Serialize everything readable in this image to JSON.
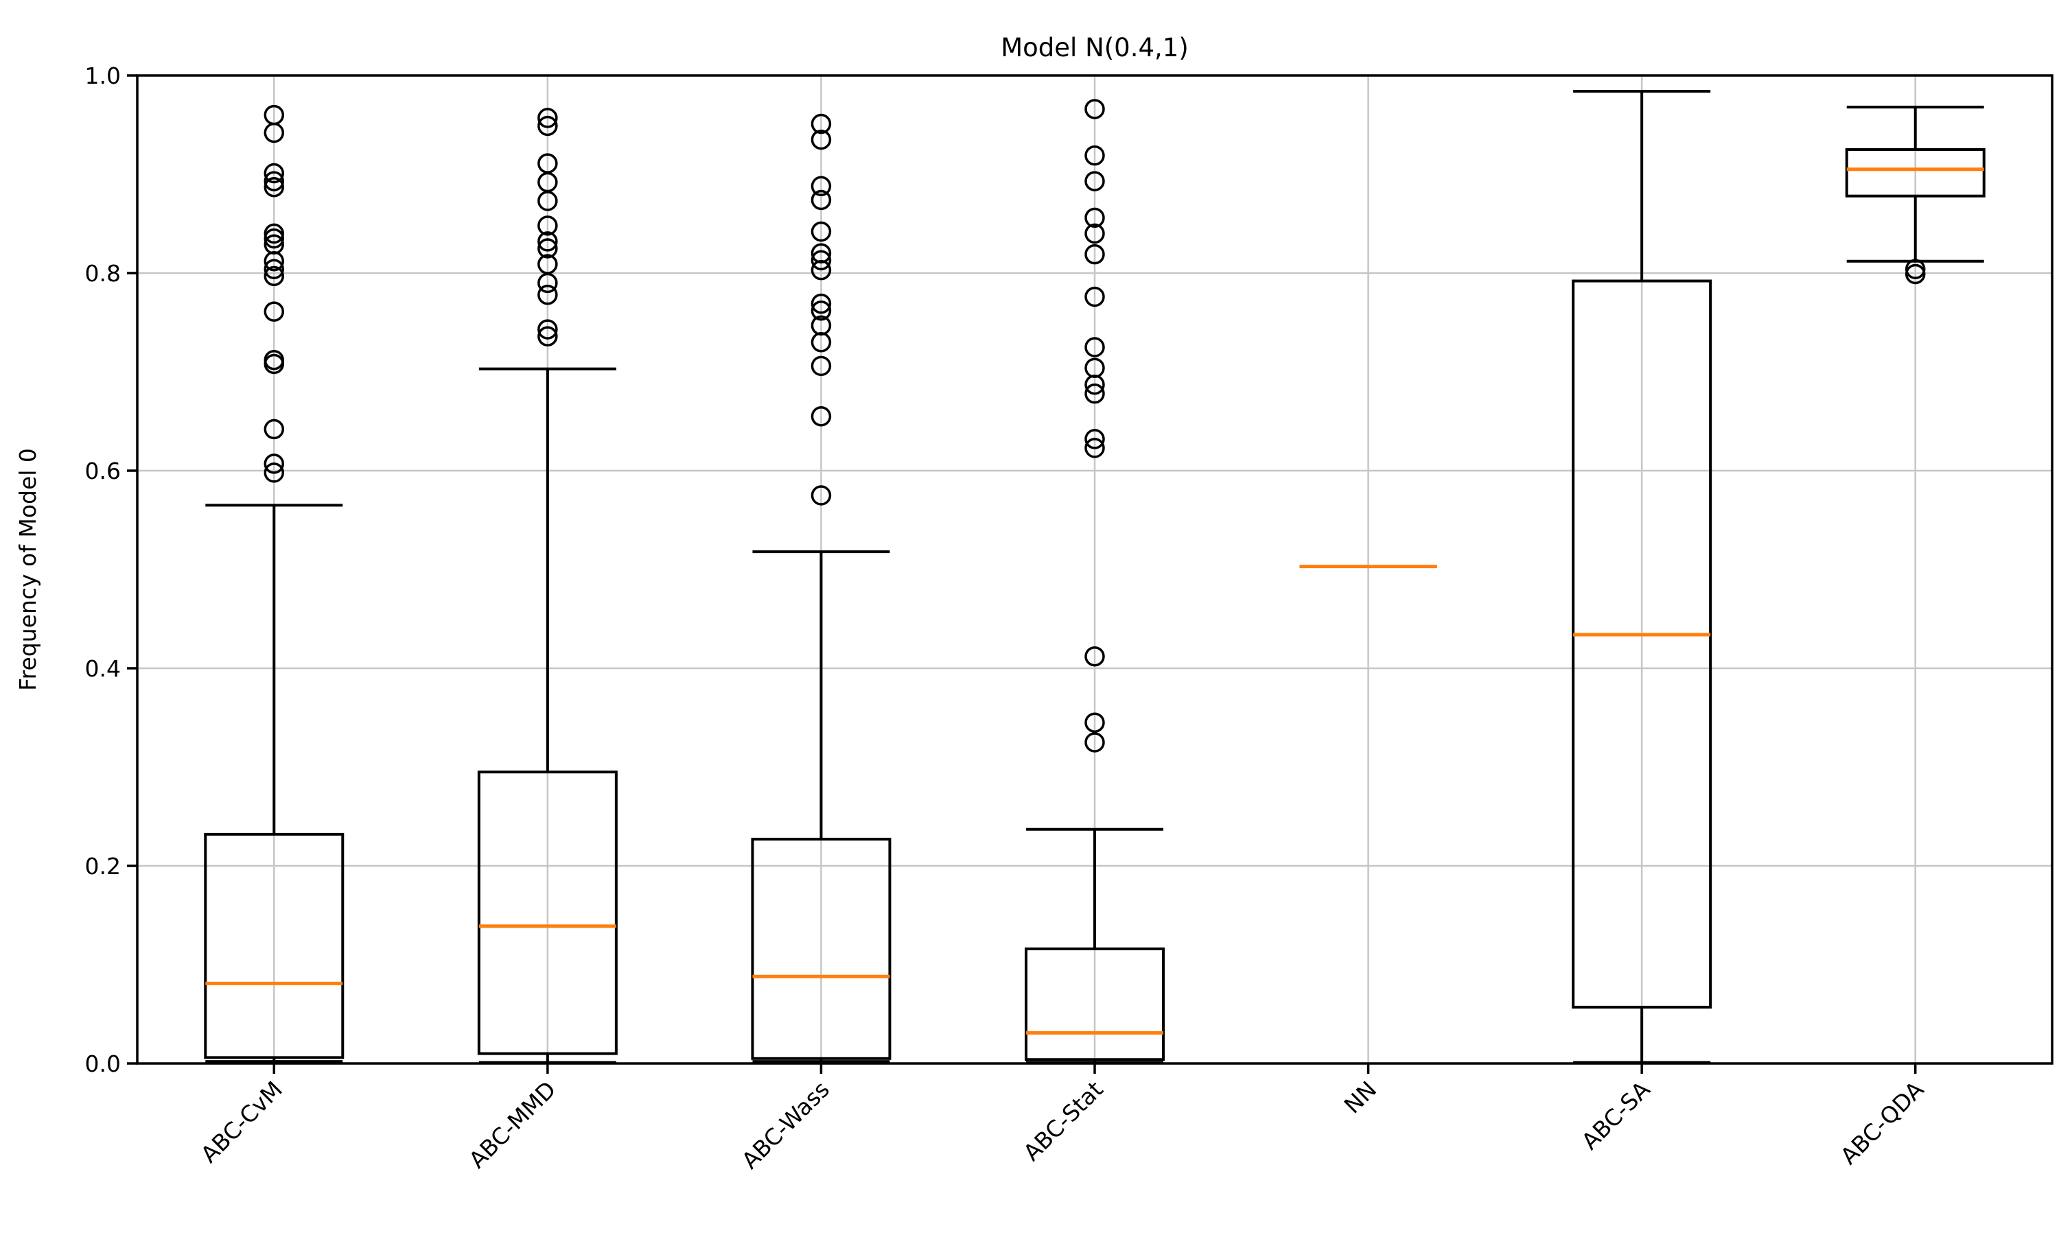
{
  "figure": {
    "background": "#ffffff"
  },
  "chart_data": {
    "type": "boxplot",
    "title": "Model N(0.4,1)",
    "xlabel": "",
    "ylabel": "Frequency of Model 0",
    "ylim": [
      0.0,
      1.0
    ],
    "yticks": [
      {
        "value": 0.0,
        "label": "0.0"
      },
      {
        "value": 0.2,
        "label": "0.2"
      },
      {
        "value": 0.4,
        "label": "0.4"
      },
      {
        "value": 0.6,
        "label": "0.6"
      },
      {
        "value": 0.8,
        "label": "0.8"
      },
      {
        "value": 1.0,
        "label": "1.0"
      }
    ],
    "grid": true,
    "legend_position": "none",
    "x_tick_rotation_deg": 45,
    "categories": [
      "ABC-CvM",
      "ABC-MMD",
      "ABC-Wass",
      "ABC-Stat",
      "NN",
      "ABC-SA",
      "ABC-QDA"
    ],
    "series": [
      {
        "label": "ABC-CvM",
        "whisker_low": 0.002,
        "q1": 0.006,
        "median": 0.081,
        "q3": 0.232,
        "whisker_high": 0.565,
        "outliers": [
          0.96,
          0.942,
          0.901,
          0.893,
          0.887,
          0.84,
          0.835,
          0.829,
          0.812,
          0.804,
          0.797,
          0.761,
          0.712,
          0.708,
          0.642,
          0.607,
          0.598
        ]
      },
      {
        "label": "ABC-MMD",
        "whisker_low": 0.001,
        "q1": 0.01,
        "median": 0.139,
        "q3": 0.295,
        "whisker_high": 0.703,
        "outliers": [
          0.957,
          0.949,
          0.911,
          0.892,
          0.873,
          0.848,
          0.832,
          0.825,
          0.809,
          0.79,
          0.778,
          0.743,
          0.736
        ]
      },
      {
        "label": "ABC-Wass",
        "whisker_low": 0.002,
        "q1": 0.005,
        "median": 0.088,
        "q3": 0.227,
        "whisker_high": 0.518,
        "outliers": [
          0.951,
          0.935,
          0.888,
          0.874,
          0.842,
          0.82,
          0.813,
          0.803,
          0.769,
          0.762,
          0.747,
          0.73,
          0.706,
          0.655,
          0.575
        ]
      },
      {
        "label": "ABC-Stat",
        "whisker_low": 0.001,
        "q1": 0.004,
        "median": 0.031,
        "q3": 0.116,
        "whisker_high": 0.237,
        "outliers": [
          0.966,
          0.919,
          0.893,
          0.856,
          0.84,
          0.819,
          0.776,
          0.725,
          0.704,
          0.687,
          0.678,
          0.632,
          0.623,
          0.412,
          0.345,
          0.325
        ]
      },
      {
        "label": "NN",
        "whisker_low": 0.503,
        "q1": 0.503,
        "median": 0.503,
        "q3": 0.503,
        "whisker_high": 0.503,
        "outliers": []
      },
      {
        "label": "ABC-SA",
        "whisker_low": 0.001,
        "q1": 0.057,
        "median": 0.434,
        "q3": 0.792,
        "whisker_high": 0.984,
        "outliers": []
      },
      {
        "label": "ABC-QDA",
        "whisker_low": 0.812,
        "q1": 0.878,
        "median": 0.905,
        "q3": 0.925,
        "whisker_high": 0.968,
        "outliers": [
          0.804,
          0.799
        ]
      }
    ],
    "colors": {
      "median": "#ff7f0e",
      "box": "#000000",
      "whisker": "#000000",
      "outlier": "#000000",
      "grid": "#c6c6c6",
      "spine": "#000000",
      "text": "#000000"
    }
  }
}
